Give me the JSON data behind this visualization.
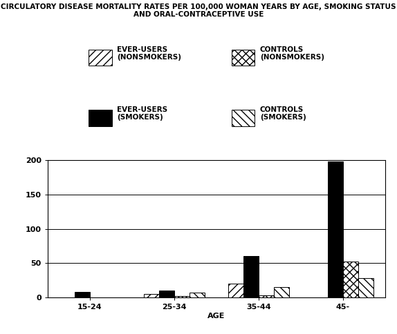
{
  "title_line1": "CIRCULATORY DISEASE MORTALITY RATES PER 100,000 WOMAN YEARS BY AGE, SMOKING STATUS",
  "title_line2": "AND ORAL-CONTRACEPTIVE USE",
  "age_groups": [
    "15-24",
    "25-34",
    "35-44",
    "45-"
  ],
  "xlabel": "AGE",
  "series": {
    "ever_users_nonsmokers": [
      0,
      5,
      20,
      0
    ],
    "ever_users_smokers": [
      8,
      10,
      60,
      198
    ],
    "controls_nonsmokers": [
      0,
      2,
      3,
      52
    ],
    "controls_smokers": [
      0,
      7,
      15,
      28
    ]
  },
  "legend_labels": [
    "EVER-USERS\n(NONSMOKERS)",
    "CONTROLS\n(NONSMOKERS)",
    "EVER-USERS\n(SMOKERS)",
    "CONTROLS\n(SMOKERS)"
  ],
  "ylim": [
    0,
    200
  ],
  "yticks": [
    0,
    50,
    100,
    150,
    200
  ],
  "bar_width": 0.18,
  "background_color": "#ffffff",
  "title_fontsize": 7.5,
  "axis_fontsize": 8,
  "legend_fontsize": 7.5
}
